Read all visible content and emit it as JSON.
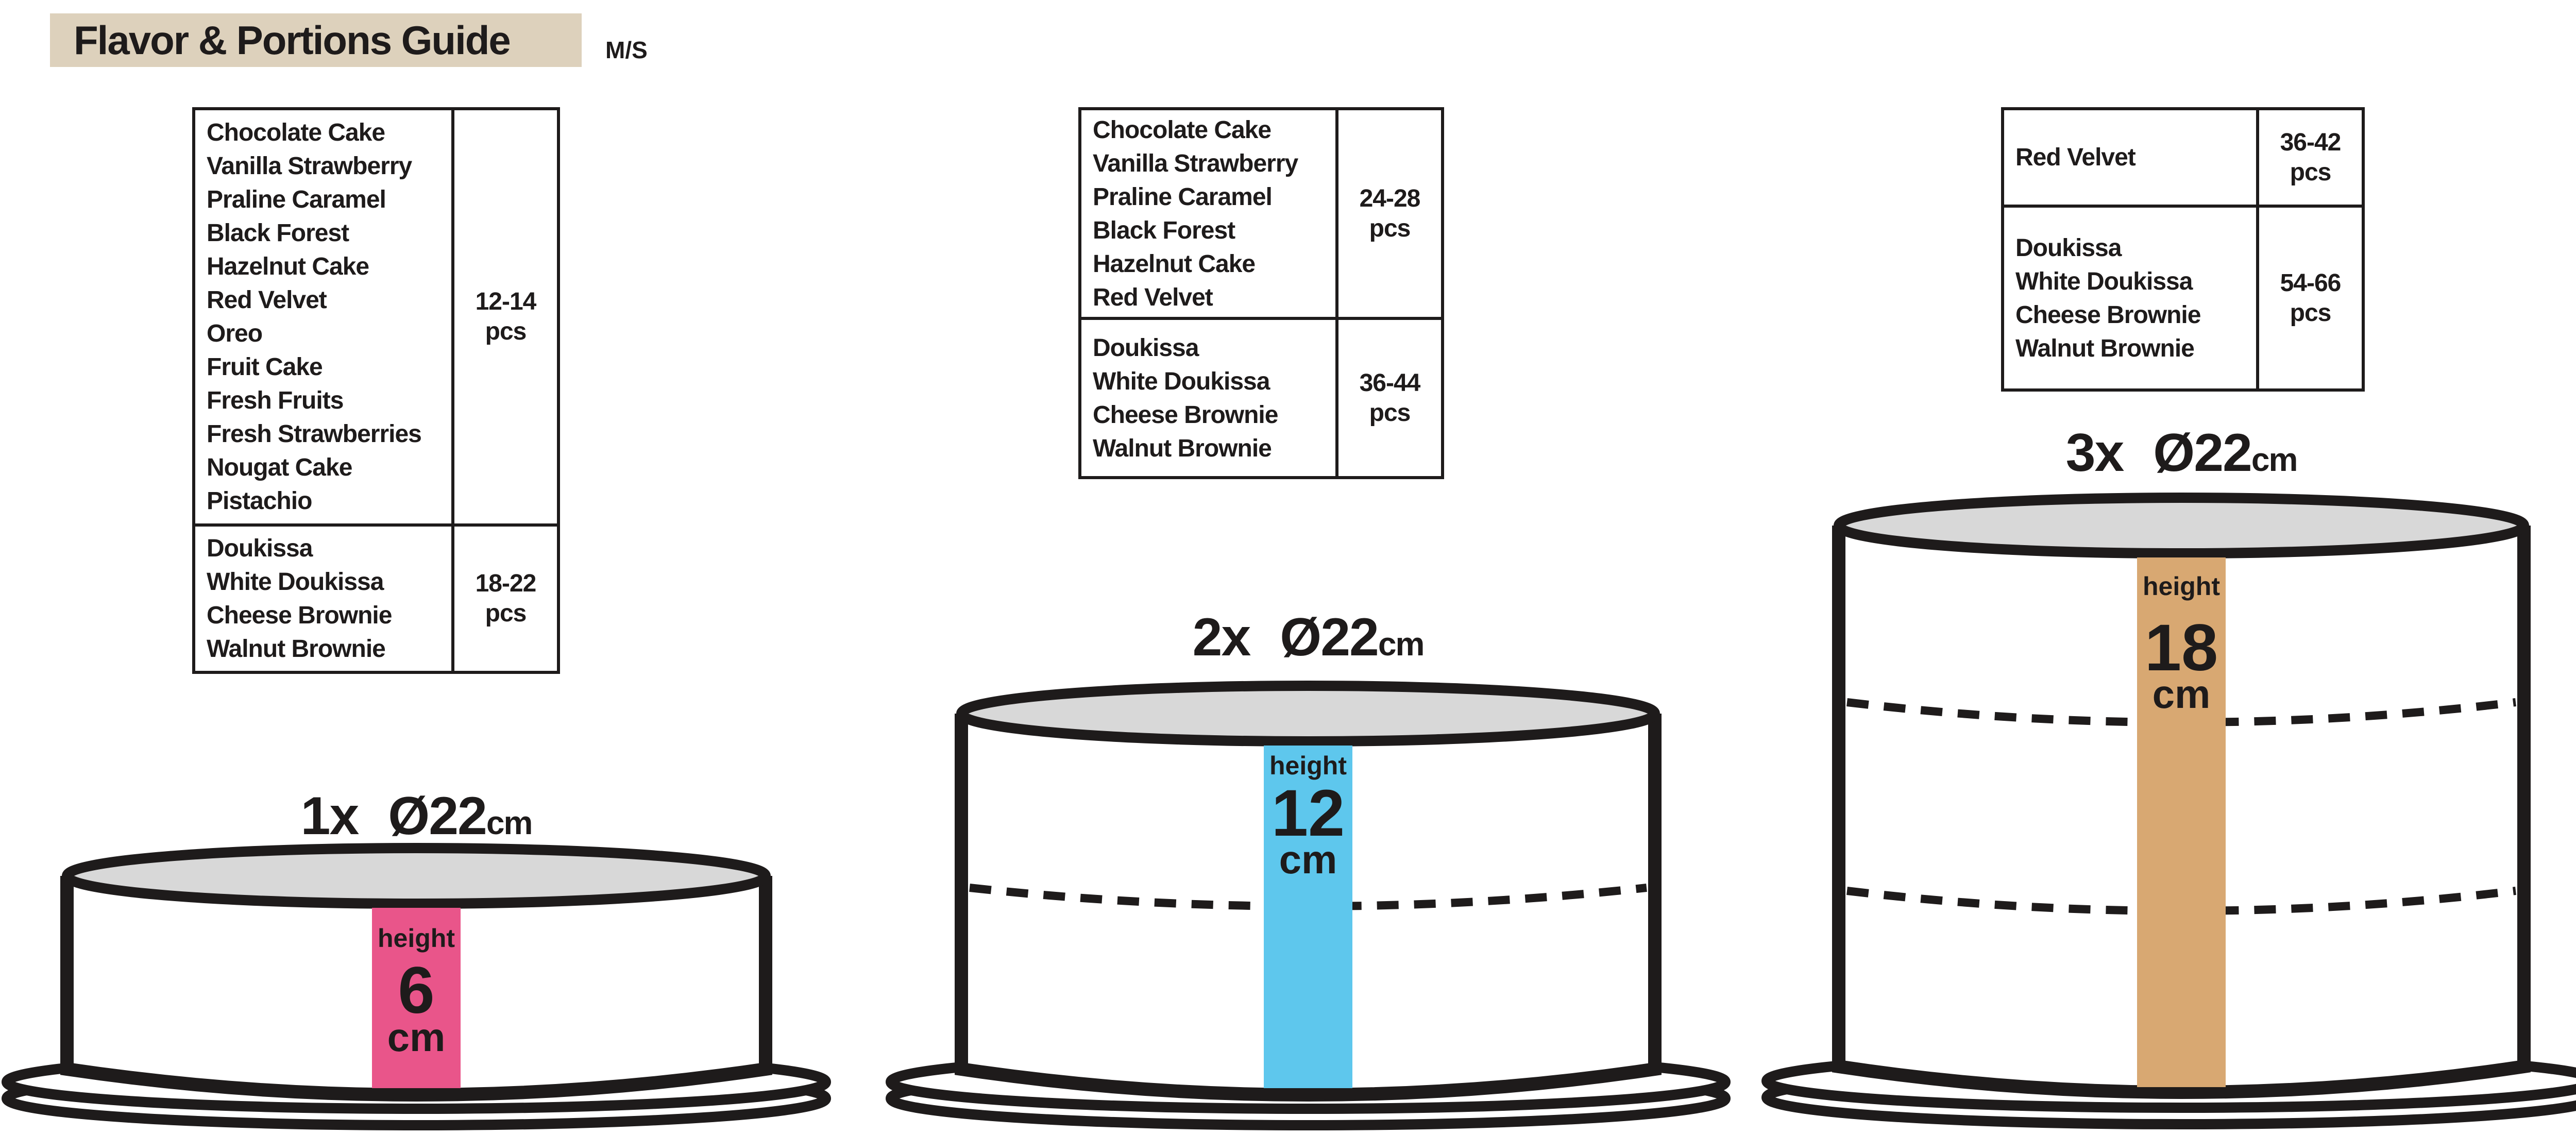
{
  "header": {
    "title": "Flavor & Portions Guide",
    "badge": "M/S"
  },
  "colors": {
    "title_bg": "#ddd1bc",
    "ink": "#1e1b1b",
    "cake_top_fill": "#d8d8d8",
    "plate_fill": "#ffffff"
  },
  "tables": [
    {
      "rows": [
        {
          "flavors": [
            "Chocolate Cake",
            "Vanilla Strawberry",
            "Praline Caramel",
            "Black Forest",
            "Hazelnut Cake",
            "Red Velvet",
            "Oreo",
            "Fruit Cake",
            "Fresh Fruits",
            "Fresh Strawberries",
            "Nougat Cake",
            "Pistachio"
          ],
          "range": "12-14",
          "unit": "pcs"
        },
        {
          "flavors": [
            "Doukissa",
            "White Doukissa",
            "Cheese Brownie",
            "Walnut Brownie"
          ],
          "range": "18-22",
          "unit": "pcs"
        }
      ]
    },
    {
      "rows": [
        {
          "flavors": [
            "Chocolate Cake",
            "Vanilla Strawberry",
            "Praline Caramel",
            "Black Forest",
            "Hazelnut Cake",
            "Red Velvet"
          ],
          "range": "24-28",
          "unit": "pcs"
        },
        {
          "flavors": [
            "Doukissa",
            "White Doukissa",
            "Cheese Brownie",
            "Walnut Brownie"
          ],
          "range": "36-44",
          "unit": "pcs"
        }
      ]
    },
    {
      "rows": [
        {
          "flavors": [
            "Red Velvet"
          ],
          "range": "36-42",
          "unit": "pcs"
        },
        {
          "flavors": [
            "Doukissa",
            "White Doukissa",
            "Cheese Brownie",
            "Walnut Brownie"
          ],
          "range": "54-66",
          "unit": "pcs"
        }
      ]
    }
  ],
  "cakes": [
    {
      "count": "1x",
      "diameter": "Ø22",
      "diameter_unit": "cm",
      "height_word": "height",
      "height_value": "6",
      "height_unit": "cm",
      "layers": 1,
      "bar_color": "#e9558a"
    },
    {
      "count": "2x",
      "diameter": "Ø22",
      "diameter_unit": "cm",
      "height_word": "height",
      "height_value": "12",
      "height_unit": "cm",
      "layers": 2,
      "bar_color": "#5ec7ed"
    },
    {
      "count": "3x",
      "diameter": "Ø22",
      "diameter_unit": "cm",
      "height_word": "height",
      "height_value": "18",
      "height_unit": "cm",
      "layers": 3,
      "bar_color": "#d8a872"
    }
  ]
}
